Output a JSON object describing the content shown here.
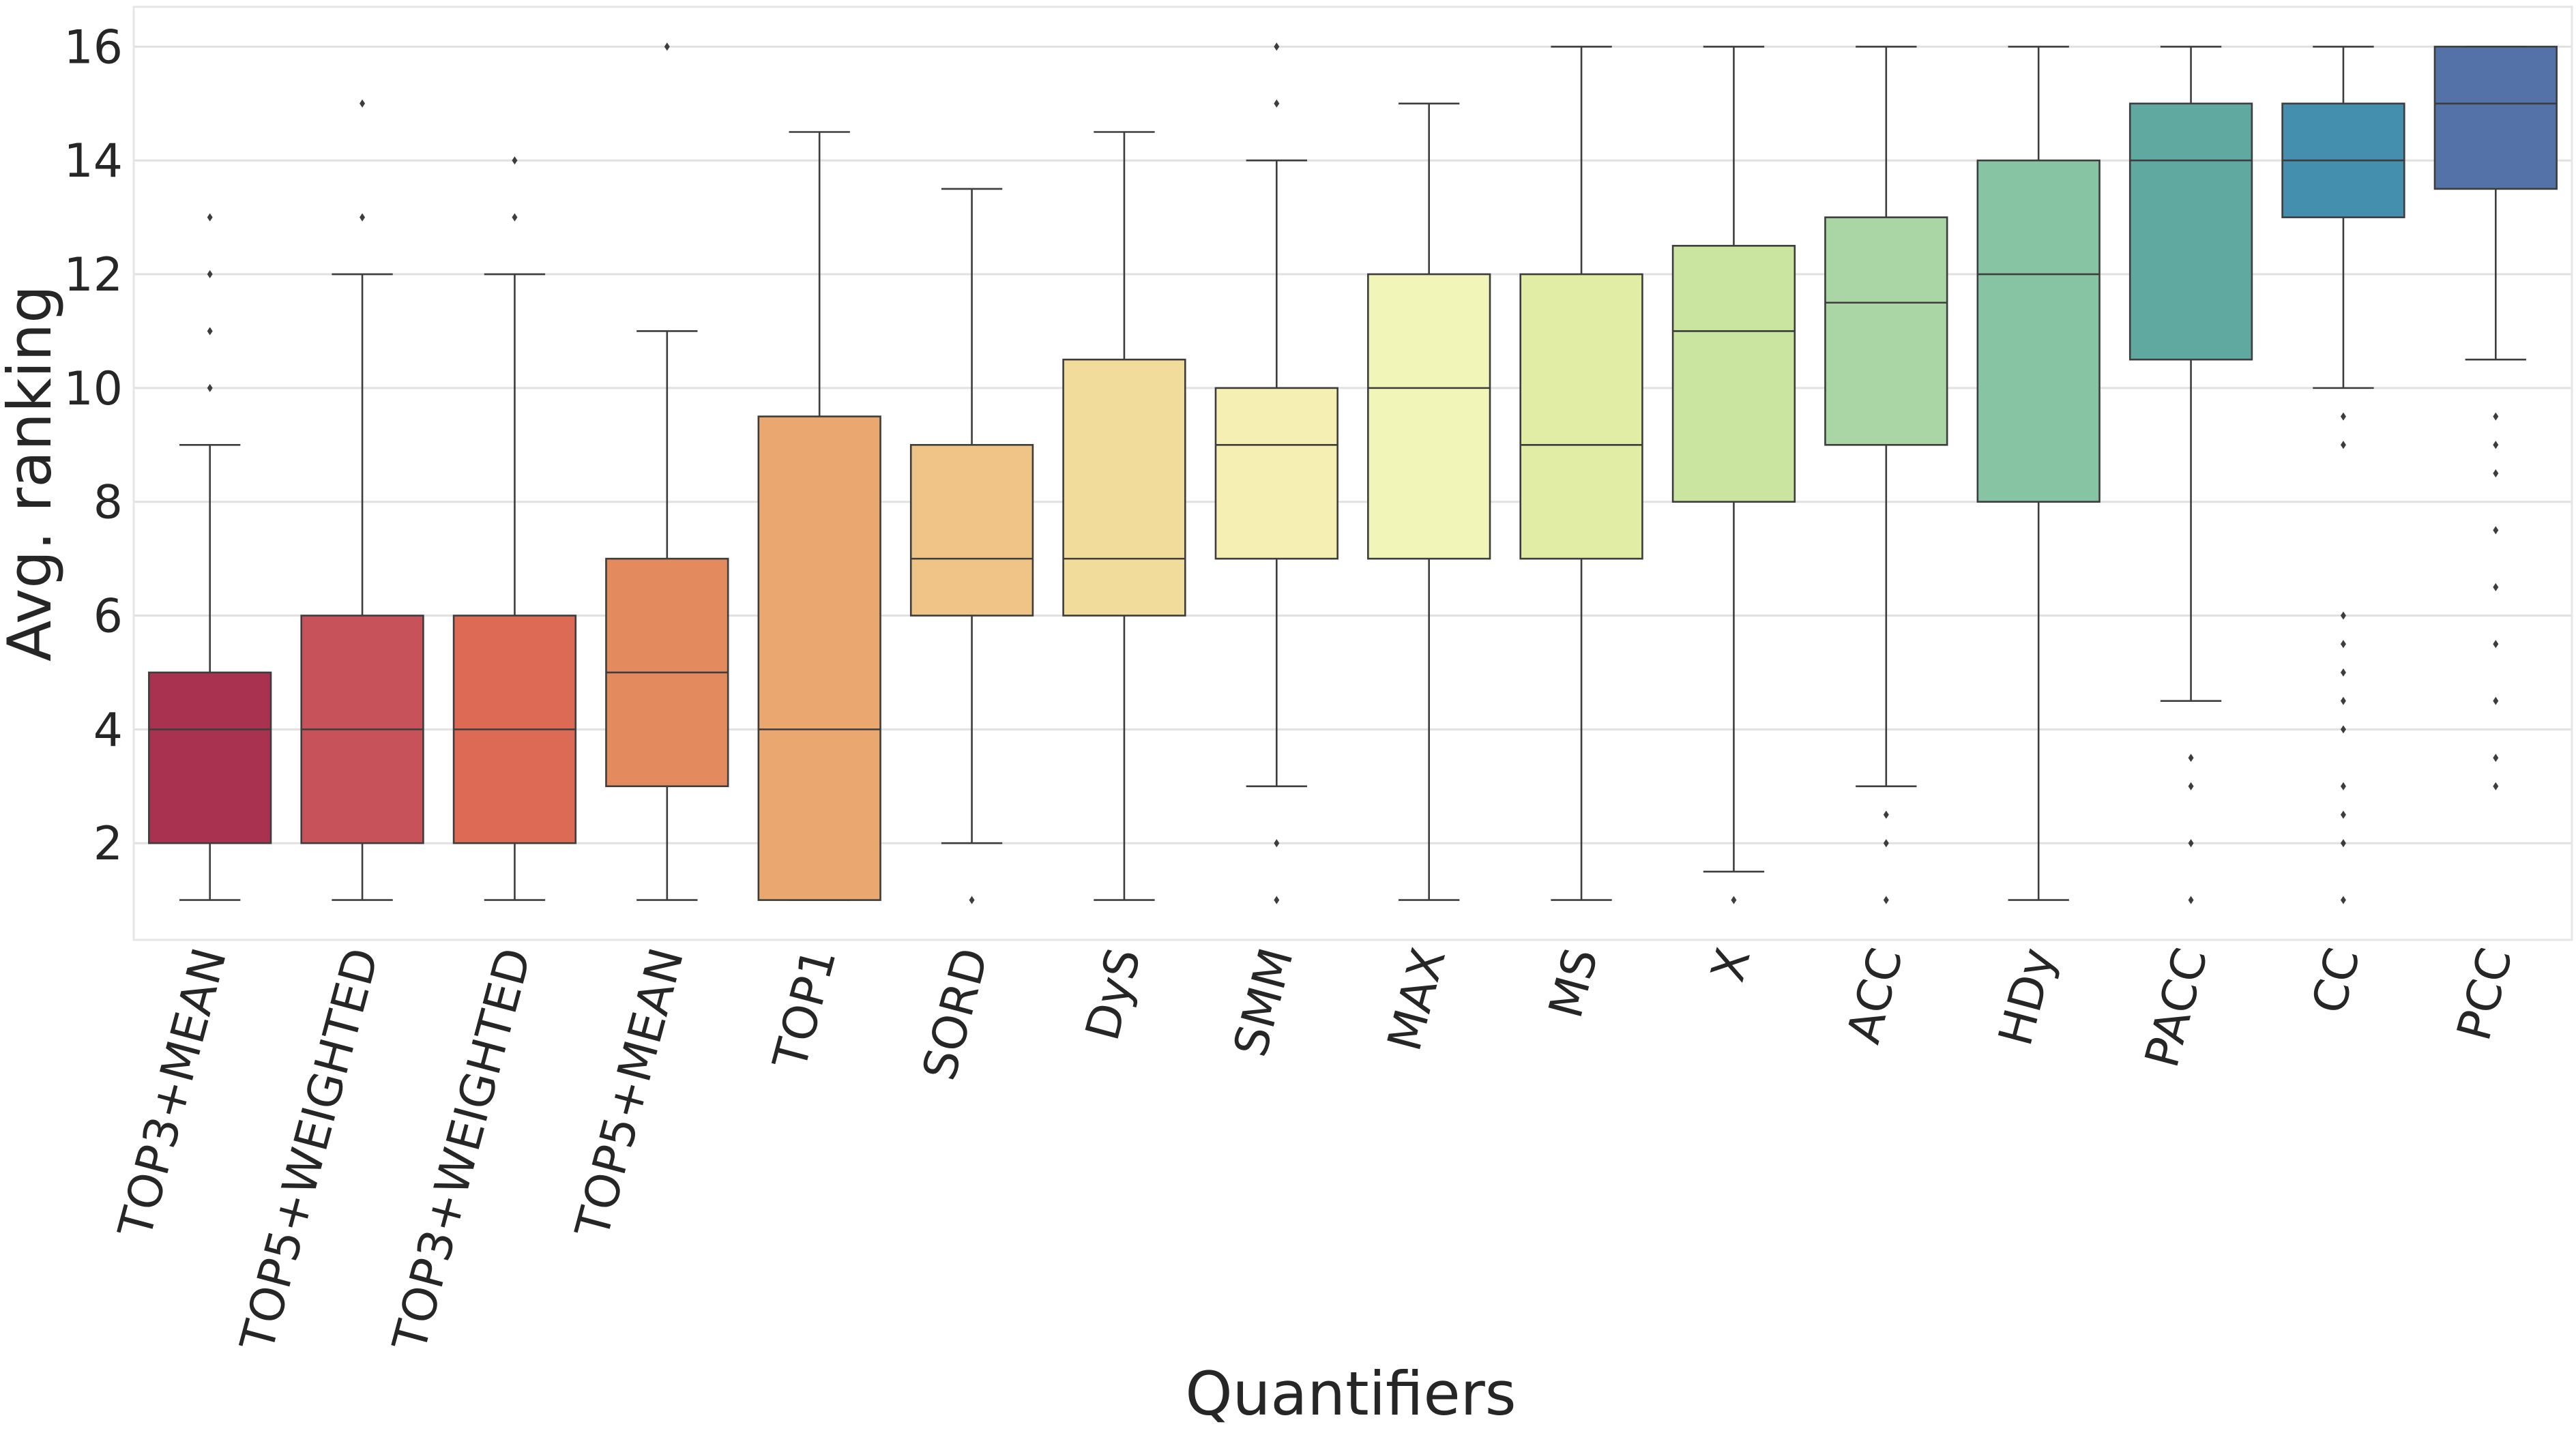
{
  "chart_data": {
    "type": "box",
    "title": "",
    "xlabel": "Quantifiers",
    "ylabel": "Avg. ranking",
    "ylim": [
      0.3,
      16.7
    ],
    "yticks": [
      2,
      4,
      6,
      8,
      10,
      12,
      14,
      16
    ],
    "grid": true,
    "categories": [
      "TOP3+MEAN",
      "TOP5+WEIGHTED",
      "TOP3+WEIGHTED",
      "TOP5+MEAN",
      "TOP1",
      "SORD",
      "DyS",
      "SMM",
      "MAX",
      "MS",
      "X",
      "ACC",
      "HDy",
      "PACC",
      "CC",
      "PCC"
    ],
    "boxes": [
      {
        "whislo": 1,
        "q1": 2,
        "med": 4,
        "q3": 5,
        "whishi": 9,
        "fliers": [
          10,
          11,
          12,
          13
        ],
        "color": "#a8324f"
      },
      {
        "whislo": 1,
        "q1": 2,
        "med": 4,
        "q3": 6,
        "whishi": 12,
        "fliers": [
          13,
          15
        ],
        "color": "#c8525a"
      },
      {
        "whislo": 1,
        "q1": 2,
        "med": 4,
        "q3": 6,
        "whishi": 12,
        "fliers": [
          13,
          14
        ],
        "color": "#dc6a55"
      },
      {
        "whislo": 1,
        "q1": 3,
        "med": 5,
        "q3": 7,
        "whishi": 11,
        "fliers": [
          16
        ],
        "color": "#e38b5f"
      },
      {
        "whislo": 1,
        "q1": 1,
        "med": 4,
        "q3": 9.5,
        "whishi": 14.5,
        "fliers": [],
        "color": "#eaa770"
      },
      {
        "whislo": 2,
        "q1": 6,
        "med": 7,
        "q3": 9,
        "whishi": 13.5,
        "fliers": [
          1
        ],
        "color": "#efc486"
      },
      {
        "whislo": 1,
        "q1": 6,
        "med": 7,
        "q3": 10.5,
        "whishi": 14.5,
        "fliers": [],
        "color": "#f2dc9c"
      },
      {
        "whislo": 3,
        "q1": 7,
        "med": 9,
        "q3": 10,
        "whishi": 14,
        "fliers": [
          1,
          2,
          15,
          16
        ],
        "color": "#f6efb3"
      },
      {
        "whislo": 1,
        "q1": 7,
        "med": 10,
        "q3": 12,
        "whishi": 15,
        "fliers": [],
        "color": "#f2f5b8"
      },
      {
        "whislo": 1,
        "q1": 7,
        "med": 9,
        "q3": 12,
        "whishi": 16,
        "fliers": [],
        "color": "#e1eda4"
      },
      {
        "whislo": 1.5,
        "q1": 8,
        "med": 11,
        "q3": 12.5,
        "whishi": 16,
        "fliers": [
          1
        ],
        "color": "#cae5a0"
      },
      {
        "whislo": 3,
        "q1": 9,
        "med": 11.5,
        "q3": 13,
        "whishi": 16,
        "fliers": [
          1,
          2,
          2.5
        ],
        "color": "#a9d6a4"
      },
      {
        "whislo": 1,
        "q1": 8,
        "med": 12,
        "q3": 14,
        "whishi": 16,
        "fliers": [],
        "color": "#86c4a4"
      },
      {
        "whislo": 4.5,
        "q1": 10.5,
        "med": 14,
        "q3": 15,
        "whishi": 16,
        "fliers": [
          1,
          2,
          3,
          3.5
        ],
        "color": "#5fa9a0"
      },
      {
        "whislo": 10,
        "q1": 13,
        "med": 14,
        "q3": 15,
        "whishi": 16,
        "fliers": [
          1,
          2,
          2.5,
          3,
          4,
          4.5,
          5,
          5.5,
          6,
          9,
          9.5
        ],
        "color": "#438fad"
      },
      {
        "whislo": 10.5,
        "q1": 13.5,
        "med": 15,
        "q3": 16,
        "whishi": 16,
        "fliers": [
          3,
          3.5,
          4.5,
          5.5,
          6.5,
          7.5,
          8.5,
          9,
          9.5
        ],
        "color": "#5471a8"
      }
    ]
  }
}
